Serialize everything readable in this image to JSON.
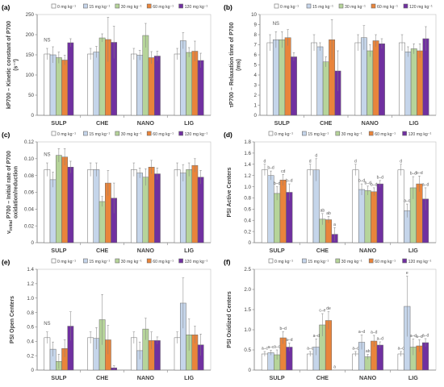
{
  "chart_data": [
    {
      "type": "bar",
      "panel_letter": "(a)",
      "ylabel": "kP700 – Kinetic constant of P700 (s⁻¹)",
      "xlabel": "",
      "ylim": [
        0,
        250
      ],
      "yticks": [
        0,
        50,
        100,
        150,
        200,
        250
      ],
      "grid": false,
      "legend_position": "top",
      "categories": [
        "SULP",
        "CHE",
        "NANO",
        "LIG"
      ],
      "series": [
        {
          "name": "0 mg kg⁻¹",
          "values": [
            152,
            152,
            152,
            152
          ],
          "errors": [
            14,
            14,
            14,
            14
          ]
        },
        {
          "name": "15 mg kg⁻¹",
          "values": [
            150,
            157,
            149,
            185
          ],
          "errors": [
            20,
            14,
            12,
            20
          ]
        },
        {
          "name": "30 mg kg⁻¹",
          "values": [
            143,
            192,
            198,
            156
          ],
          "errors": [
            14,
            10,
            30,
            12
          ]
        },
        {
          "name": "60 mg kg⁻¹",
          "values": [
            137,
            188,
            143,
            159
          ],
          "errors": [
            12,
            55,
            15,
            25
          ]
        },
        {
          "name": "120 mg kg⁻¹",
          "values": [
            180,
            181,
            147,
            136
          ],
          "errors": [
            10,
            40,
            12,
            18
          ]
        }
      ],
      "annotations": [
        {
          "category": 0,
          "series": 0,
          "text": "NS"
        }
      ]
    },
    {
      "type": "bar",
      "panel_letter": "(b)",
      "ylabel": "τP700 – Relaxation time of P700 (ms)",
      "xlabel": "",
      "ylim": [
        0,
        10
      ],
      "yticks": [
        0,
        1,
        2,
        3,
        4,
        5,
        6,
        7,
        8,
        9,
        10
      ],
      "grid": false,
      "legend_position": "top",
      "categories": [
        "SULP",
        "CHE",
        "NANO",
        "LIG"
      ],
      "series": [
        {
          "name": "0 mg kg⁻¹",
          "values": [
            7.2,
            7.2,
            7.2,
            7.2
          ],
          "errors": [
            0.8,
            0.8,
            0.8,
            0.8
          ]
        },
        {
          "name": "15 mg kg⁻¹",
          "values": [
            7.5,
            6.8,
            7.7,
            6.3
          ],
          "errors": [
            0.8,
            0.4,
            1.2,
            0.5
          ]
        },
        {
          "name": "30 mg kg⁻¹",
          "values": [
            7.5,
            5.3,
            6.4,
            6.6
          ],
          "errors": [
            0.8,
            0.5,
            0.6,
            0.5
          ]
        },
        {
          "name": "60 mg kg⁻¹",
          "values": [
            7.7,
            7.5,
            7.4,
            6.4
          ],
          "errors": [
            0.8,
            2.0,
            0.6,
            0.7
          ]
        },
        {
          "name": "120 mg kg⁻¹",
          "values": [
            5.8,
            4.4,
            7.1,
            7.6
          ],
          "errors": [
            0.4,
            2.0,
            0.5,
            1.2
          ]
        }
      ],
      "annotations": [
        {
          "category": 0,
          "series": 1,
          "text": "NS"
        }
      ]
    },
    {
      "type": "bar",
      "panel_letter": "(c)",
      "ylabel": "v_initial P700 – Initial rate of P700 oxidation/reduction",
      "xlabel": "",
      "ylim": [
        0,
        0.12
      ],
      "yticks": [
        0,
        0.02,
        0.04,
        0.06,
        0.08,
        0.1,
        0.12
      ],
      "grid": false,
      "legend_position": "top",
      "categories": [
        "SULP",
        "CHE",
        "NANO",
        "LIG"
      ],
      "series": [
        {
          "name": "0 mg kg⁻¹",
          "values": [
            0.087,
            0.087,
            0.087,
            0.087
          ],
          "errors": [
            0.008,
            0.008,
            0.008,
            0.008
          ]
        },
        {
          "name": "15 mg kg⁻¹",
          "values": [
            0.075,
            0.087,
            0.083,
            0.083
          ],
          "errors": [
            0.009,
            0.008,
            0.006,
            0.01
          ]
        },
        {
          "name": "30 mg kg⁻¹",
          "values": [
            0.104,
            0.049,
            0.078,
            0.087
          ],
          "errors": [
            0.008,
            0.006,
            0.01,
            0.008
          ]
        },
        {
          "name": "60 mg kg⁻¹",
          "values": [
            0.102,
            0.071,
            0.09,
            0.092
          ],
          "errors": [
            0.01,
            0.015,
            0.008,
            0.008
          ]
        },
        {
          "name": "120 mg kg⁻¹",
          "values": [
            0.09,
            0.053,
            0.082,
            0.078
          ],
          "errors": [
            0.007,
            0.018,
            0.007,
            0.008
          ]
        }
      ],
      "annotations": [
        {
          "category": 0,
          "series": 0,
          "text": "NS"
        }
      ]
    },
    {
      "type": "bar",
      "panel_letter": "(d)",
      "ylabel": "PSI Active Centers",
      "xlabel": "",
      "ylim": [
        0,
        1.8
      ],
      "yticks": [
        0,
        0.2,
        0.4,
        0.6,
        0.8,
        1,
        1.2,
        1.4,
        1.6,
        1.8
      ],
      "grid": false,
      "legend_position": "top",
      "categories": [
        "SULP",
        "CHE",
        "NANO",
        "LIG"
      ],
      "series": [
        {
          "name": "0 mg kg⁻¹",
          "values": [
            1.3,
            1.3,
            1.3,
            1.3
          ],
          "errors": [
            0.1,
            0.1,
            0.1,
            0.1
          ]
        },
        {
          "name": "15 mg kg⁻¹",
          "values": [
            1.2,
            1.3,
            0.95,
            0.57
          ],
          "errors": [
            0.08,
            0.2,
            0.1,
            0.12
          ]
        },
        {
          "name": "30 mg kg⁻¹",
          "values": [
            0.88,
            0.42,
            0.93,
            0.98
          ],
          "errors": [
            0.12,
            0.1,
            0.08,
            0.2
          ]
        },
        {
          "name": "60 mg kg⁻¹",
          "values": [
            1.12,
            0.41,
            0.91,
            1.05
          ],
          "errors": [
            0.1,
            0.06,
            0.07,
            0.14
          ]
        },
        {
          "name": "120 mg kg⁻¹",
          "values": [
            0.9,
            0.15,
            1.05,
            0.78
          ],
          "errors": [
            0.15,
            0.12,
            0.06,
            0.2
          ]
        }
      ],
      "annotations": [
        {
          "category": 0,
          "series": 0,
          "text": "d"
        },
        {
          "category": 0,
          "series": 1,
          "text": "b–d"
        },
        {
          "category": 0,
          "series": 2,
          "text": "b–d"
        },
        {
          "category": 0,
          "series": 3,
          "text": "cd"
        },
        {
          "category": 0,
          "series": 4,
          "text": "b–d"
        },
        {
          "category": 1,
          "series": 0,
          "text": "d"
        },
        {
          "category": 1,
          "series": 1,
          "text": "d"
        },
        {
          "category": 1,
          "series": 2,
          "text": "ab"
        },
        {
          "category": 1,
          "series": 3,
          "text": "ab"
        },
        {
          "category": 1,
          "series": 4,
          "text": "a"
        },
        {
          "category": 2,
          "series": 0,
          "text": "d"
        },
        {
          "category": 2,
          "series": 1,
          "text": "b–d"
        },
        {
          "category": 2,
          "series": 2,
          "text": "b–d"
        },
        {
          "category": 2,
          "series": 3,
          "text": "b–d"
        },
        {
          "category": 2,
          "series": 4,
          "text": "b–d"
        },
        {
          "category": 3,
          "series": 0,
          "text": "d"
        },
        {
          "category": 3,
          "series": 1,
          "text": "a–c"
        },
        {
          "category": 3,
          "series": 2,
          "text": "b–d"
        },
        {
          "category": 3,
          "series": 3,
          "text": "b–d"
        },
        {
          "category": 3,
          "series": 4,
          "text": "a–d"
        }
      ]
    },
    {
      "type": "bar",
      "panel_letter": "(e)",
      "ylabel": "PSI Open Centers",
      "xlabel": "",
      "ylim": [
        0,
        1.4
      ],
      "yticks": [
        0,
        0.2,
        0.4,
        0.6,
        0.8,
        1,
        1.2,
        1.4
      ],
      "grid": false,
      "legend_position": "top",
      "categories": [
        "SULP",
        "CHE",
        "NANO",
        "LIG"
      ],
      "series": [
        {
          "name": "0 mg kg⁻¹",
          "values": [
            0.45,
            0.45,
            0.45,
            0.45
          ],
          "errors": [
            0.08,
            0.08,
            0.08,
            0.08
          ]
        },
        {
          "name": "15 mg kg⁻¹",
          "values": [
            0.29,
            0.44,
            0.27,
            0.93
          ],
          "errors": [
            0.1,
            0.15,
            0.12,
            0.35
          ]
        },
        {
          "name": "30 mg kg⁻¹",
          "values": [
            0.12,
            0.7,
            0.57,
            0.49
          ],
          "errors": [
            0.1,
            0.35,
            0.15,
            0.22
          ]
        },
        {
          "name": "60 mg kg⁻¹",
          "values": [
            0.3,
            0.42,
            0.41,
            0.49
          ],
          "errors": [
            0.12,
            0.2,
            0.12,
            0.12
          ]
        },
        {
          "name": "120 mg kg⁻¹",
          "values": [
            0.61,
            0.03,
            0.41,
            0.35
          ],
          "errors": [
            0.2,
            0.03,
            0.05,
            0.15
          ]
        }
      ],
      "annotations": [
        {
          "category": 0,
          "series": 0,
          "text": "NS"
        }
      ]
    },
    {
      "type": "bar",
      "panel_letter": "(f)",
      "ylabel": "PSI Oxidized Centers",
      "xlabel": "",
      "ylim": [
        0,
        2.5
      ],
      "yticks": [
        0,
        0.5,
        1,
        1.5,
        2,
        2.5
      ],
      "grid": false,
      "legend_position": "top",
      "categories": [
        "SULP",
        "CHE",
        "NANO",
        "LIG"
      ],
      "series": [
        {
          "name": "0 mg kg⁻¹",
          "values": [
            0.4,
            0.4,
            0.4,
            0.4
          ],
          "errors": [
            0.06,
            0.06,
            0.06,
            0.06
          ]
        },
        {
          "name": "15 mg kg⁻¹",
          "values": [
            0.43,
            0.57,
            0.69,
            1.58
          ],
          "errors": [
            0.06,
            0.2,
            0.18,
            0.75
          ]
        },
        {
          "name": "30 mg kg⁻¹",
          "values": [
            0.38,
            1.12,
            0.33,
            0.57
          ],
          "errors": [
            0.12,
            0.28,
            0.06,
            0.2
          ]
        },
        {
          "name": "60 mg kg⁻¹",
          "values": [
            0.8,
            1.23,
            0.72,
            0.6
          ],
          "errors": [
            0.15,
            0.22,
            0.14,
            0.15
          ]
        },
        {
          "name": "120 mg kg⁻¹",
          "values": [
            0.57,
            0.0,
            0.62,
            0.68
          ],
          "errors": [
            0.1,
            0.0,
            0.08,
            0.1
          ]
        }
      ],
      "annotations": [
        {
          "category": 0,
          "series": 0,
          "text": "a–c"
        },
        {
          "category": 0,
          "series": 1,
          "text": "a–c"
        },
        {
          "category": 0,
          "series": 2,
          "text": "a–c"
        },
        {
          "category": 0,
          "series": 3,
          "text": "b–d"
        },
        {
          "category": 0,
          "series": 4,
          "text": "a–d"
        },
        {
          "category": 1,
          "series": 0,
          "text": "a–c"
        },
        {
          "category": 1,
          "series": 1,
          "text": "a–d"
        },
        {
          "category": 1,
          "series": 2,
          "text": "c–e"
        },
        {
          "category": 1,
          "series": 3,
          "text": "de"
        },
        {
          "category": 1,
          "series": 4,
          "text": "a"
        },
        {
          "category": 2,
          "series": 0,
          "text": "a–c"
        },
        {
          "category": 2,
          "series": 1,
          "text": "a–d"
        },
        {
          "category": 2,
          "series": 2,
          "text": "ab"
        },
        {
          "category": 2,
          "series": 3,
          "text": "a–d"
        },
        {
          "category": 2,
          "series": 4,
          "text": "a–d"
        },
        {
          "category": 3,
          "series": 0,
          "text": "a–c"
        },
        {
          "category": 3,
          "series": 1,
          "text": "e"
        },
        {
          "category": 3,
          "series": 2,
          "text": "a–d"
        },
        {
          "category": 3,
          "series": 3,
          "text": "a–d"
        },
        {
          "category": 3,
          "series": 4,
          "text": "a–d"
        }
      ]
    }
  ],
  "colors": {
    "series": [
      "#ffffff",
      "#c5d5ea",
      "#b6d49a",
      "#e9843b",
      "#7030a0"
    ],
    "bar_border": "#6a6a6a",
    "axis": "#808080",
    "text": "#404040"
  }
}
